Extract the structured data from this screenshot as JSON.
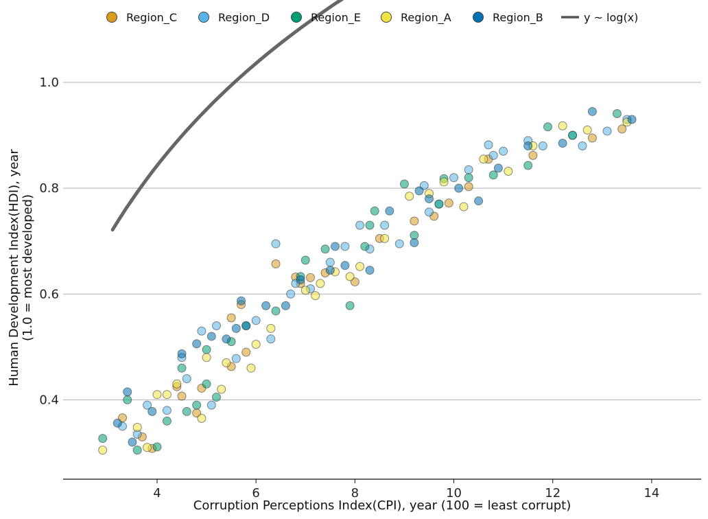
{
  "chart_data": {
    "type": "scatter",
    "xlabel": "Corruption Perceptions Index(CPI), year (100 = least corrupt)",
    "ylabel_line1": "Human Development Index(HDI), year",
    "ylabel_line2": "(1.0 = most developed)",
    "xlim": [
      2.1,
      15.0
    ],
    "ylim": [
      0.25,
      1.1
    ],
    "xticks": [
      4,
      6,
      8,
      10,
      12,
      14
    ],
    "yticks": [
      0.4,
      0.6,
      0.8,
      1.0
    ],
    "grid": "horizontal",
    "legend_position": "top",
    "series": [
      {
        "name": "Region_C",
        "color": "#d99a1e",
        "points": [
          [
            3.3,
            0.366
          ],
          [
            3.9,
            0.308
          ],
          [
            4.4,
            0.425
          ],
          [
            4.5,
            0.407
          ],
          [
            4.9,
            0.422
          ],
          [
            5.5,
            0.463
          ],
          [
            5.8,
            0.49
          ],
          [
            6.4,
            0.657
          ],
          [
            6.8,
            0.632
          ],
          [
            7.1,
            0.631
          ],
          [
            7.4,
            0.64
          ],
          [
            8.0,
            0.623
          ],
          [
            8.5,
            0.705
          ],
          [
            9.2,
            0.738
          ],
          [
            9.6,
            0.747
          ],
          [
            10.3,
            0.803
          ],
          [
            10.7,
            0.855
          ],
          [
            11.6,
            0.862
          ],
          [
            12.8,
            0.895
          ],
          [
            13.4,
            0.912
          ],
          [
            5.5,
            0.555
          ],
          [
            5.7,
            0.58
          ],
          [
            3.7,
            0.33
          ],
          [
            4.8,
            0.375
          ],
          [
            6.9,
            0.62
          ],
          [
            9.9,
            0.772
          ]
        ]
      },
      {
        "name": "Region_D",
        "color": "#56b4e9",
        "points": [
          [
            3.3,
            0.35
          ],
          [
            3.6,
            0.335
          ],
          [
            3.8,
            0.39
          ],
          [
            4.2,
            0.38
          ],
          [
            4.5,
            0.48
          ],
          [
            4.9,
            0.53
          ],
          [
            5.2,
            0.54
          ],
          [
            5.6,
            0.478
          ],
          [
            6.0,
            0.55
          ],
          [
            6.3,
            0.515
          ],
          [
            6.4,
            0.695
          ],
          [
            6.8,
            0.62
          ],
          [
            7.1,
            0.61
          ],
          [
            7.5,
            0.66
          ],
          [
            7.8,
            0.69
          ],
          [
            8.1,
            0.73
          ],
          [
            8.6,
            0.73
          ],
          [
            8.9,
            0.695
          ],
          [
            9.4,
            0.805
          ],
          [
            9.7,
            0.77
          ],
          [
            10.0,
            0.82
          ],
          [
            10.3,
            0.835
          ],
          [
            10.7,
            0.882
          ],
          [
            11.0,
            0.87
          ],
          [
            11.5,
            0.89
          ],
          [
            11.8,
            0.88
          ],
          [
            12.4,
            0.9
          ],
          [
            13.1,
            0.908
          ],
          [
            13.5,
            0.93
          ],
          [
            4.6,
            0.44
          ],
          [
            5.1,
            0.39
          ],
          [
            6.7,
            0.6
          ],
          [
            8.3,
            0.685
          ],
          [
            9.5,
            0.755
          ],
          [
            10.8,
            0.862
          ],
          [
            12.6,
            0.88
          ]
        ]
      },
      {
        "name": "Region_E",
        "color": "#009e73",
        "points": [
          [
            2.9,
            0.327
          ],
          [
            3.4,
            0.4
          ],
          [
            3.6,
            0.305
          ],
          [
            4.0,
            0.311
          ],
          [
            4.2,
            0.36
          ],
          [
            4.5,
            0.46
          ],
          [
            4.8,
            0.39
          ],
          [
            5.0,
            0.495
          ],
          [
            5.2,
            0.405
          ],
          [
            5.5,
            0.51
          ],
          [
            5.8,
            0.54
          ],
          [
            6.4,
            0.568
          ],
          [
            7.0,
            0.664
          ],
          [
            7.4,
            0.685
          ],
          [
            7.9,
            0.578
          ],
          [
            8.3,
            0.73
          ],
          [
            8.4,
            0.757
          ],
          [
            9.0,
            0.808
          ],
          [
            9.2,
            0.711
          ],
          [
            9.8,
            0.818
          ],
          [
            10.3,
            0.82
          ],
          [
            10.8,
            0.825
          ],
          [
            11.5,
            0.843
          ],
          [
            11.9,
            0.916
          ],
          [
            12.4,
            0.9
          ],
          [
            13.3,
            0.941
          ],
          [
            4.6,
            0.378
          ],
          [
            5.0,
            0.43
          ],
          [
            6.9,
            0.633
          ],
          [
            8.2,
            0.69
          ],
          [
            9.7,
            0.77
          ]
        ]
      },
      {
        "name": "Region_A",
        "color": "#f0e442",
        "points": [
          [
            2.9,
            0.305
          ],
          [
            3.6,
            0.348
          ],
          [
            3.8,
            0.31
          ],
          [
            4.0,
            0.41
          ],
          [
            4.4,
            0.43
          ],
          [
            4.9,
            0.365
          ],
          [
            5.0,
            0.48
          ],
          [
            5.3,
            0.42
          ],
          [
            5.9,
            0.46
          ],
          [
            6.0,
            0.505
          ],
          [
            6.3,
            0.535
          ],
          [
            7.0,
            0.607
          ],
          [
            7.2,
            0.597
          ],
          [
            7.6,
            0.642
          ],
          [
            7.9,
            0.633
          ],
          [
            8.1,
            0.652
          ],
          [
            8.6,
            0.705
          ],
          [
            9.1,
            0.785
          ],
          [
            9.8,
            0.812
          ],
          [
            10.2,
            0.765
          ],
          [
            10.6,
            0.855
          ],
          [
            11.1,
            0.832
          ],
          [
            11.6,
            0.88
          ],
          [
            12.2,
            0.918
          ],
          [
            12.7,
            0.91
          ],
          [
            13.5,
            0.925
          ],
          [
            4.2,
            0.41
          ],
          [
            5.4,
            0.47
          ],
          [
            7.3,
            0.62
          ],
          [
            9.5,
            0.79
          ]
        ]
      },
      {
        "name": "Region_B",
        "color": "#0072b2",
        "points": [
          [
            3.2,
            0.356
          ],
          [
            3.4,
            0.415
          ],
          [
            3.5,
            0.32
          ],
          [
            3.9,
            0.378
          ],
          [
            4.5,
            0.487
          ],
          [
            4.8,
            0.506
          ],
          [
            5.1,
            0.52
          ],
          [
            5.4,
            0.515
          ],
          [
            5.7,
            0.587
          ],
          [
            5.8,
            0.54
          ],
          [
            6.2,
            0.578
          ],
          [
            6.6,
            0.578
          ],
          [
            6.9,
            0.627
          ],
          [
            7.5,
            0.645
          ],
          [
            7.8,
            0.654
          ],
          [
            8.3,
            0.645
          ],
          [
            8.7,
            0.757
          ],
          [
            9.2,
            0.697
          ],
          [
            9.5,
            0.78
          ],
          [
            10.5,
            0.776
          ],
          [
            10.9,
            0.838
          ],
          [
            11.5,
            0.88
          ],
          [
            12.2,
            0.885
          ],
          [
            12.8,
            0.945
          ],
          [
            13.6,
            0.93
          ],
          [
            5.6,
            0.535
          ],
          [
            7.6,
            0.69
          ],
          [
            9.3,
            0.795
          ],
          [
            10.1,
            0.8
          ]
        ]
      }
    ],
    "fit": {
      "name": "y ~ log(x)",
      "color": "#555555",
      "a": 0.4765,
      "b": 0.1823,
      "x_range": [
        3.1,
        14.0
      ]
    }
  }
}
